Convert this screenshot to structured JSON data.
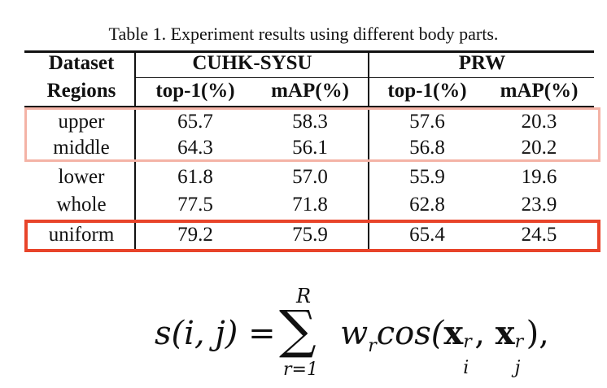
{
  "caption": "Table 1. Experiment results using different body parts.",
  "header": {
    "dataset_label": "Dataset",
    "regions_label": "Regions",
    "group1": "CUHK-SYSU",
    "group2": "PRW",
    "metric_top1": "top-1(%)",
    "metric_map": "mAP(%)"
  },
  "rows": [
    {
      "region": "upper",
      "cuhk_top1": "65.7",
      "cuhk_map": "58.3",
      "prw_top1": "57.6",
      "prw_map": "20.3"
    },
    {
      "region": "middle",
      "cuhk_top1": "64.3",
      "cuhk_map": "56.1",
      "prw_top1": "56.8",
      "prw_map": "20.2"
    },
    {
      "region": "lower",
      "cuhk_top1": "61.8",
      "cuhk_map": "57.0",
      "prw_top1": "55.9",
      "prw_map": "19.6"
    },
    {
      "region": "whole",
      "cuhk_top1": "77.5",
      "cuhk_map": "71.8",
      "prw_top1": "62.8",
      "prw_map": "23.9"
    },
    {
      "region": "uniform",
      "cuhk_top1": "79.2",
      "cuhk_map": "75.9",
      "prw_top1": "65.4",
      "prw_map": "24.5"
    }
  ],
  "highlight_colors": {
    "light": "#f4b3a6",
    "strong": "#e8442a"
  },
  "formula": {
    "lhs": "s(i, j) =",
    "sum_upper": "R",
    "sum_lower": "r=1",
    "term_weight": "w",
    "term_weight_sub": "r",
    "term_func": "cos(",
    "x1": "x",
    "x1_sup": "r",
    "x1_sub": "i",
    "comma": ", ",
    "x2": "x",
    "x2_sup": "r",
    "x2_sub": "j",
    "tail": "),"
  }
}
